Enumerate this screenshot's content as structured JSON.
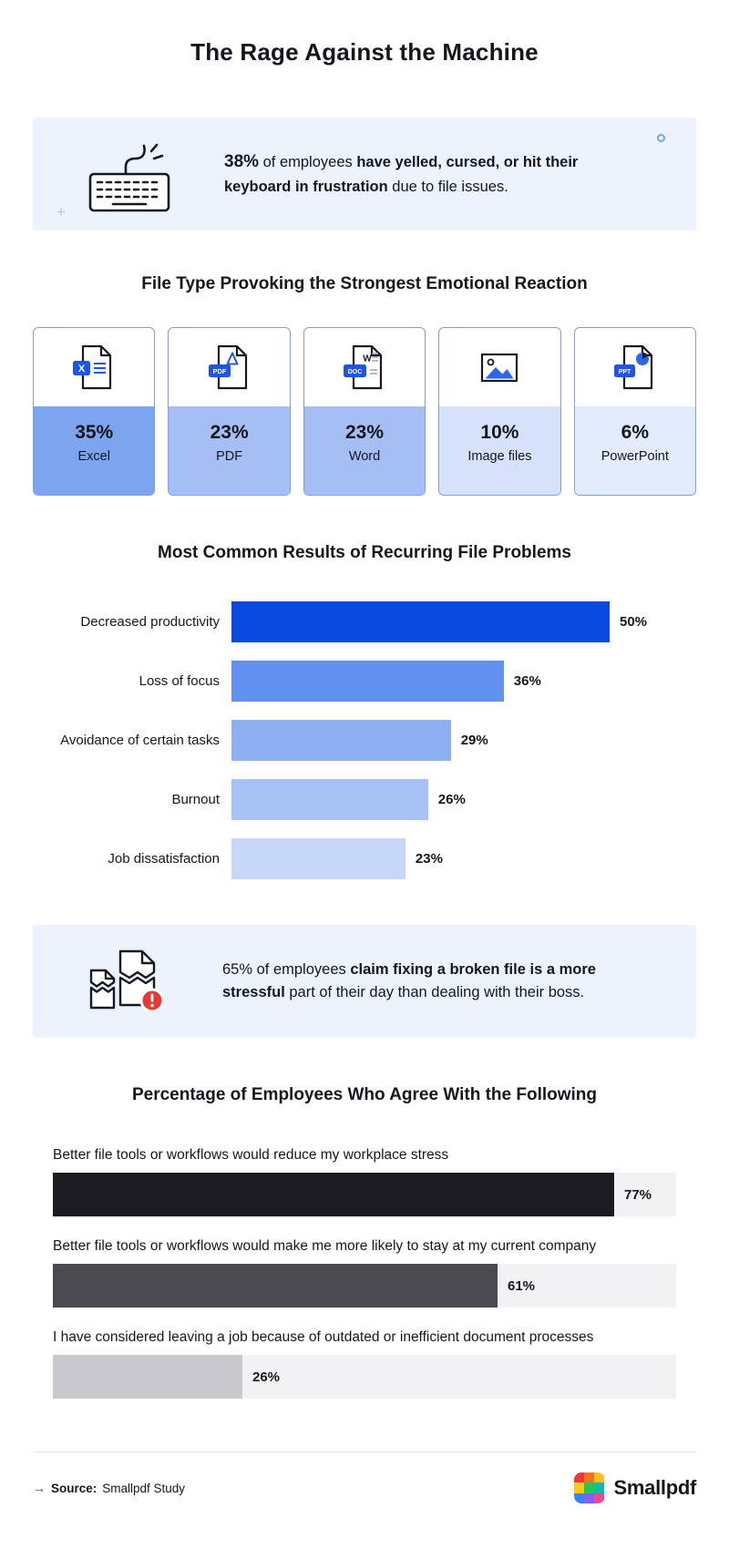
{
  "page": {
    "title": "The Rage Against the Machine",
    "background": "#ffffff",
    "accent_blue": "#1f56e0",
    "callout_bg": "#edf3fc",
    "text_color": "#16161f"
  },
  "callout_keyboard": {
    "icon": "keyboard-icon",
    "segments": [
      {
        "text": "38%",
        "bold": true,
        "stat": true
      },
      {
        "text": " of employees ",
        "bold": false
      },
      {
        "text": "have yelled, cursed, or hit their keyboard in frustration",
        "bold": true
      },
      {
        "text": " due to file issues.",
        "bold": false
      }
    ]
  },
  "callout_broken_file": {
    "icon": "broken-file-alert-icon",
    "segments": [
      {
        "text": "65% of employees ",
        "bold": false
      },
      {
        "text": "claim fixing a broken file is a more stressful",
        "bold": true
      },
      {
        "text": " part of their day than dealing with their boss.",
        "bold": false
      }
    ]
  },
  "chart_data": [
    {
      "type": "bar",
      "variant": "icon-stat-cards",
      "title": "File Type Provoking the Strongest Emotional Reaction",
      "categories": [
        "Excel",
        "PDF",
        "Word",
        "Image files",
        "PowerPoint"
      ],
      "values": [
        35,
        23,
        23,
        10,
        6
      ],
      "value_labels": [
        "35%",
        "23%",
        "23%",
        "10%",
        "6%"
      ],
      "card_fills": [
        "#7da4ef",
        "#a5bff5",
        "#a5bff5",
        "#d6e2fb",
        "#e3ecfc"
      ],
      "icons": [
        "excel-file-icon",
        "pdf-file-icon",
        "word-file-icon",
        "image-file-icon",
        "powerpoint-file-icon"
      ]
    },
    {
      "type": "bar",
      "orientation": "horizontal",
      "title": "Most Common Results of Recurring File Problems",
      "categories": [
        "Decreased productivity",
        "Loss of focus",
        "Avoidance of certain tasks",
        "Burnout",
        "Job dissatisfaction"
      ],
      "values": [
        50,
        36,
        29,
        26,
        23
      ],
      "value_labels": [
        "50%",
        "36%",
        "29%",
        "26%",
        "23%"
      ],
      "bar_colors": [
        "#0a49e0",
        "#6190ee",
        "#8db0f2",
        "#a9c2f6",
        "#c6d7fa"
      ],
      "xlim": [
        0,
        50
      ],
      "grid": false,
      "legend": false
    },
    {
      "type": "bar",
      "orientation": "horizontal",
      "title": "Percentage of Employees Who Agree With the Following",
      "categories": [
        "Better file tools or workflows would reduce my workplace stress",
        "Better file tools or workflows would make me more likely to stay at my current company",
        "I have considered leaving a job because of outdated or inefficient document processes"
      ],
      "values": [
        77,
        61,
        26
      ],
      "value_labels": [
        "77%",
        "61%",
        "26%"
      ],
      "bar_colors": [
        "#1b1b21",
        "#4a4a4f",
        "#c9c9cd"
      ],
      "track_color": "#f2f2f4",
      "xlim": [
        0,
        100
      ],
      "grid": false,
      "legend": false
    }
  ],
  "footer": {
    "arrow": "→",
    "source_label": "Source:",
    "source_value": "Smallpdf Study",
    "brand": "Smallpdf",
    "logo_tiles": [
      "#f5333c",
      "#f97316",
      "#fbbf24",
      "#facc15",
      "#22c55e",
      "#14b8a6",
      "#3b82f6",
      "#8b5cf6",
      "#ec4899"
    ]
  }
}
